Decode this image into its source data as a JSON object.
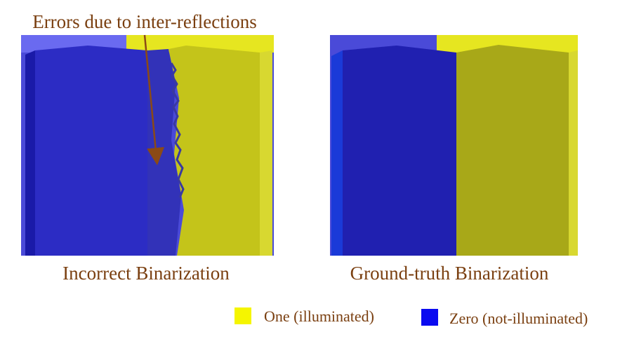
{
  "callout": "Errors due to inter-reflections",
  "panels": [
    {
      "caption": "Incorrect Binarization"
    },
    {
      "caption": "Ground-truth Binarization"
    }
  ],
  "legend": [
    {
      "label": "One (illuminated)"
    },
    {
      "label": "Zero (not-illuminated)"
    }
  ]
}
